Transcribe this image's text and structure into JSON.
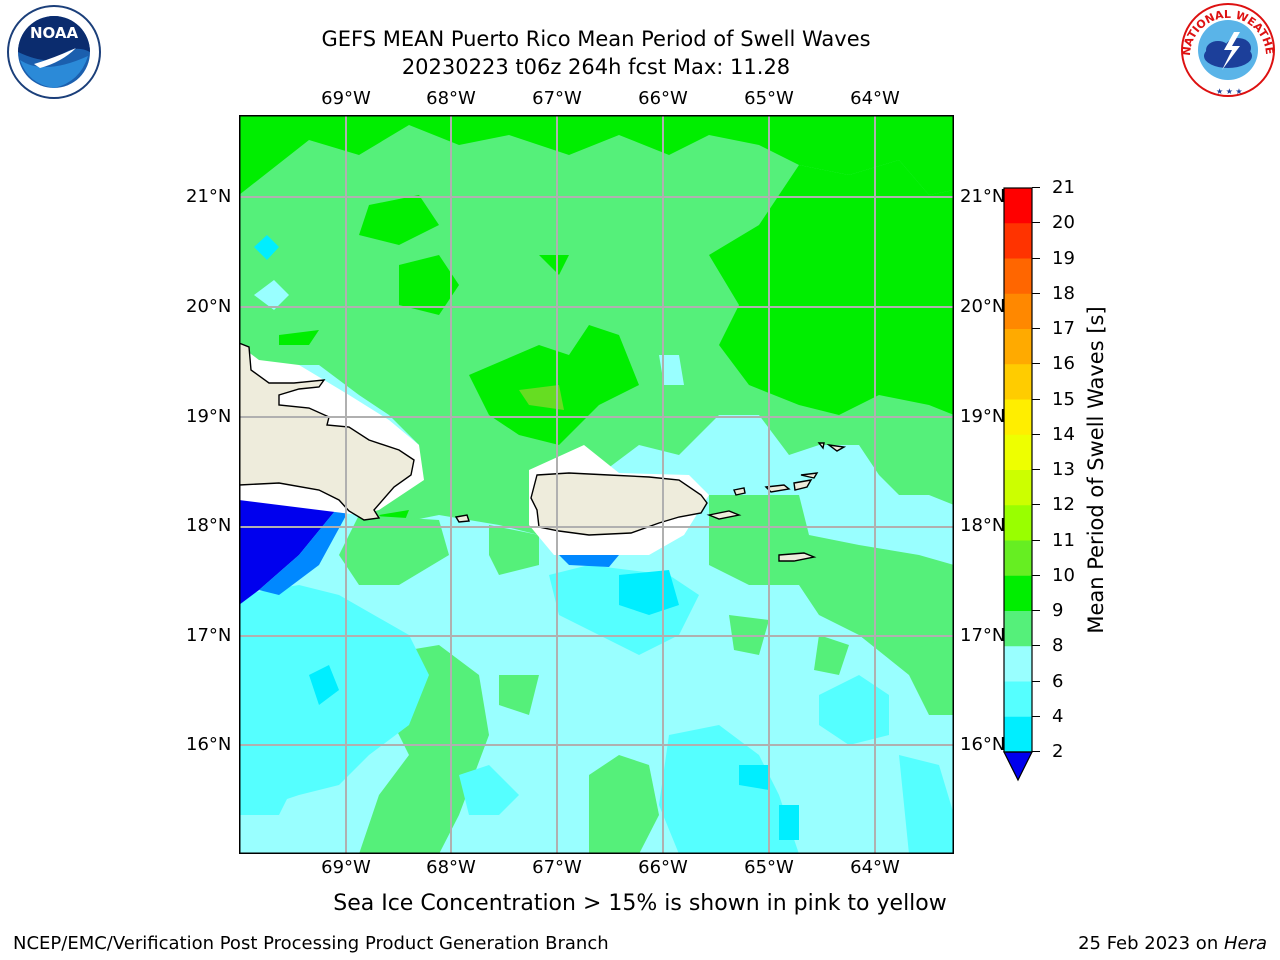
{
  "header": {
    "title_line1": "GEFS MEAN Puerto Rico Mean Period of Swell Waves",
    "title_line2": "20230223 t06z 264h fcst   Max: 11.28"
  },
  "map": {
    "lon_labels": [
      "69°W",
      "68°W",
      "67°W",
      "66°W",
      "65°W",
      "64°W"
    ],
    "lat_labels": [
      "21°N",
      "20°N",
      "19°N",
      "18°N",
      "17°N",
      "16°N"
    ],
    "land_color": "#eeecdc",
    "gridline_color": "#b0b0b0"
  },
  "colorbar": {
    "label": "Mean Period of Swell Waves [s]",
    "ticks": [
      "21",
      "20",
      "19",
      "18",
      "17",
      "16",
      "15",
      "14",
      "13",
      "12",
      "11",
      "10",
      "9",
      "8",
      "6",
      "4",
      "2"
    ],
    "colors": [
      "#ff0000",
      "#ff3300",
      "#ff6600",
      "#ff8800",
      "#ffaa00",
      "#ffcc00",
      "#ffee00",
      "#eeff00",
      "#ccff00",
      "#99ff00",
      "#66ee22",
      "#00ee00",
      "#55f07a",
      "#99ffff",
      "#55ffff",
      "#00eeff",
      "#0088ff",
      "#0000ee"
    ]
  },
  "note": "Sea Ice Concentration > 15% is shown in pink to yellow",
  "footer": {
    "left": "NCEP/EMC/Verification Post Processing Product Generation Branch",
    "right_prefix": "25 Feb 2023 on ",
    "right_machine": "Hera"
  },
  "logos": {
    "noaa_text": "NOAA",
    "nws_text": "NATIONAL WEATHER SERVICE"
  }
}
